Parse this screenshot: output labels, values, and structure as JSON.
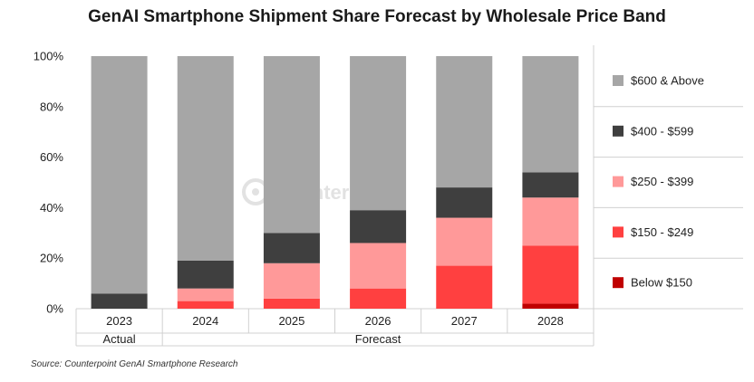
{
  "chart_data": {
    "type": "bar",
    "stacked": true,
    "title": "GenAI Smartphone Shipment Share Forecast by Wholesale Price Band",
    "categories": [
      "2023",
      "2024",
      "2025",
      "2026",
      "2027",
      "2028"
    ],
    "group_labels": [
      {
        "label": "Actual",
        "categories": [
          "2023"
        ]
      },
      {
        "label": "Forecast",
        "categories": [
          "2024",
          "2025",
          "2026",
          "2027",
          "2028"
        ]
      }
    ],
    "ylim": [
      0,
      100
    ],
    "yticks": [
      "0%",
      "20%",
      "40%",
      "60%",
      "80%",
      "100%"
    ],
    "series": [
      {
        "name": "Below $150",
        "color": "#c00000",
        "values": [
          0,
          0,
          0,
          0,
          0,
          2
        ]
      },
      {
        "name": "$150 - $249",
        "color": "#ff4040",
        "values": [
          0,
          3,
          4,
          8,
          17,
          23
        ]
      },
      {
        "name": "$250 - $399",
        "color": "#ff9999",
        "values": [
          0,
          5,
          14,
          18,
          19,
          19
        ]
      },
      {
        "name": "$400 - $599",
        "color": "#3f3f3f",
        "values": [
          6,
          11,
          12,
          13,
          12,
          10
        ]
      },
      {
        "name": "$600 & Above",
        "color": "#a6a6a6",
        "values": [
          94,
          81,
          70,
          61,
          52,
          46
        ]
      }
    ],
    "legend_position": "right"
  },
  "watermark": "Counterpoint",
  "source": "Source: Counterpoint GenAI Smartphone Research"
}
